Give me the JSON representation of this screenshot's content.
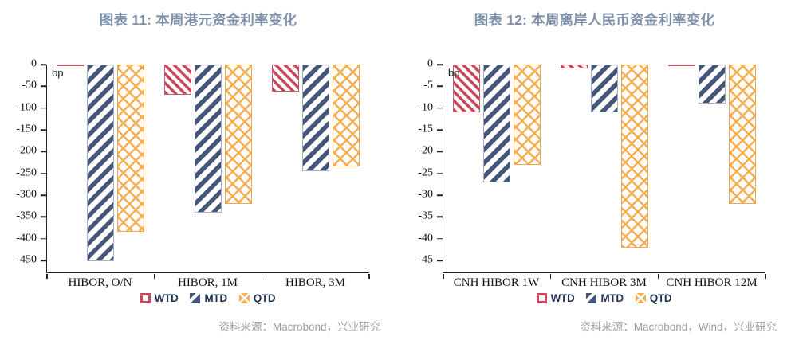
{
  "page": {
    "background": "#ffffff"
  },
  "colors": {
    "title_text": "#7E8FA9",
    "axis": "#222222",
    "tick_text": "#111111",
    "legend_text": "#1F3450",
    "source_text": "#9D9D9D",
    "wtd_red": "#C9495C",
    "mtd_navy": "#44567A",
    "qtd_orange": "#F5AF52"
  },
  "chart_data": [
    {
      "type": "bar",
      "title": "图表 11: 本周港元资金利率变化",
      "unit_label": "bp",
      "categories": [
        "HIBOR, O/N",
        "HIBOR, 1M",
        "HIBOR, 3M"
      ],
      "series": [
        {
          "name": "WTD",
          "values": [
            -3,
            -70,
            -62
          ],
          "color": "#C9495C",
          "border": "#C75A6A",
          "pattern": "diag-down"
        },
        {
          "name": "MTD",
          "values": [
            -452,
            -340,
            -245
          ],
          "color": "#44567A",
          "border": "#A6B0C4",
          "pattern": "diag-up"
        },
        {
          "name": "QTD",
          "values": [
            -385,
            -320,
            -235
          ],
          "color": "#F5AF52",
          "border": "#F2A748",
          "pattern": "crosshatch"
        }
      ],
      "ylim": [
        0,
        -450
      ],
      "ytick_step": 50,
      "grid": false,
      "legend_position": "bottom",
      "source": "资料来源：Macrobond，兴业研究"
    },
    {
      "type": "bar",
      "title": "图表 12: 本周离岸人民币资金利率变化",
      "unit_label": "bp",
      "categories": [
        "CNH HIBOR 1W",
        "CNH HIBOR 3M",
        "CNH HIBOR 12M"
      ],
      "series": [
        {
          "name": "WTD",
          "values": [
            -11,
            -1,
            -0.2
          ],
          "color": "#C9495C",
          "border": "#C75A6A",
          "pattern": "diag-down"
        },
        {
          "name": "MTD",
          "values": [
            -27,
            -11,
            -9
          ],
          "color": "#44567A",
          "border": "#A6B0C4",
          "pattern": "diag-up"
        },
        {
          "name": "QTD",
          "values": [
            -23,
            -42,
            -32
          ],
          "color": "#F5AF52",
          "border": "#F2A748",
          "pattern": "crosshatch"
        }
      ],
      "ylim": [
        0,
        -45
      ],
      "ytick_step": 5,
      "grid": false,
      "legend_position": "bottom",
      "source": "资料来源：Macrobond，Wind，兴业研究"
    }
  ]
}
